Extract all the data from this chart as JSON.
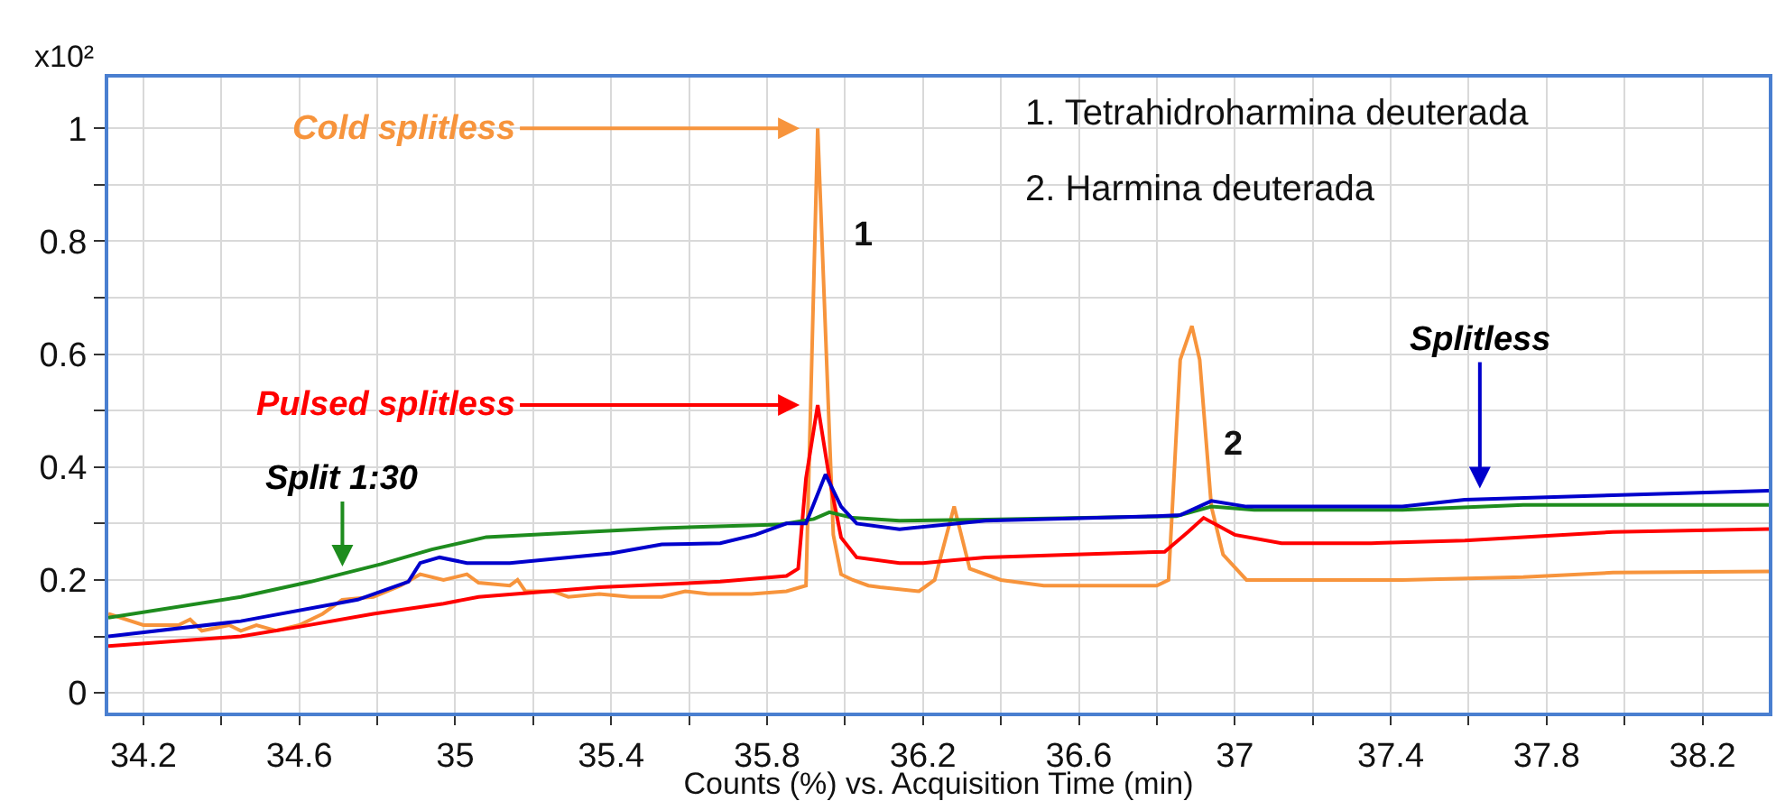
{
  "chart_data": {
    "type": "line",
    "xlabel": "Counts (%) vs. Acquisition Time (min)",
    "ylabel": "x10²",
    "xlim": [
      34.11,
      38.37
    ],
    "ylim": [
      -0.035,
      1.09
    ],
    "xticks": [
      34.2,
      {
        "value": 34.4,
        "label": null
      },
      34.6,
      {
        "value": 34.8,
        "label": null
      },
      35,
      {
        "value": 35.2,
        "label": null
      },
      35.4,
      {
        "value": 35.6,
        "label": null
      },
      35.8,
      {
        "value": 36.0,
        "label": null
      },
      36.2,
      {
        "value": 36.4,
        "label": null
      },
      36.6,
      {
        "value": 36.8,
        "label": null
      },
      37,
      {
        "value": 37.2,
        "label": null
      },
      37.4,
      {
        "value": 37.6,
        "label": null
      },
      37.8,
      {
        "value": 38.0,
        "label": null
      },
      38.2
    ],
    "yticks": [
      0,
      {
        "value": 0.1,
        "label": null
      },
      0.2,
      {
        "value": 0.3,
        "label": null
      },
      0.4,
      {
        "value": 0.5,
        "label": null
      },
      0.6,
      {
        "value": 0.7,
        "label": null
      },
      0.8,
      {
        "value": 0.9,
        "label": null
      },
      1
    ],
    "grid": true,
    "legend": false,
    "marker": "none",
    "line_style": "solid",
    "series": [
      {
        "name": "Cold splitless",
        "color": "#f7943c",
        "x": [
          34.11,
          34.2,
          34.29,
          34.32,
          34.35,
          34.42,
          34.45,
          34.49,
          34.54,
          34.6,
          34.66,
          34.71,
          34.79,
          34.86,
          34.91,
          34.97,
          35.03,
          35.06,
          35.14,
          35.16,
          35.18,
          35.25,
          35.29,
          35.37,
          35.45,
          35.53,
          35.59,
          35.65,
          35.76,
          35.85,
          35.9,
          35.93,
          35.97,
          35.99,
          36.02,
          36.06,
          36.09,
          36.19,
          36.23,
          36.28,
          36.32,
          36.4,
          36.51,
          36.8,
          36.83,
          36.86,
          36.89,
          36.91,
          36.94,
          36.97,
          37.03,
          37.12,
          37.43,
          37.74,
          37.97,
          38.37
        ],
        "values": [
          0.14,
          0.12,
          0.12,
          0.13,
          0.11,
          0.12,
          0.11,
          0.12,
          0.11,
          0.12,
          0.14,
          0.165,
          0.17,
          0.19,
          0.21,
          0.2,
          0.21,
          0.195,
          0.19,
          0.2,
          0.18,
          0.18,
          0.17,
          0.175,
          0.17,
          0.17,
          0.18,
          0.175,
          0.175,
          0.18,
          0.19,
          1.0,
          0.28,
          0.21,
          0.2,
          0.19,
          0.187,
          0.18,
          0.2,
          0.33,
          0.22,
          0.2,
          0.19,
          0.19,
          0.2,
          0.59,
          0.65,
          0.59,
          0.33,
          0.245,
          0.2,
          0.2,
          0.2,
          0.205,
          0.213,
          0.215
        ]
      },
      {
        "name": "Pulsed splitless",
        "color": "#ff0000",
        "x": [
          34.11,
          34.45,
          34.6,
          34.79,
          34.97,
          35.06,
          35.37,
          35.68,
          35.85,
          35.88,
          35.9,
          35.93,
          35.96,
          35.99,
          36.03,
          36.14,
          36.2,
          36.28,
          36.36,
          36.59,
          36.82,
          36.88,
          36.92,
          37.0,
          37.12,
          37.35,
          37.59,
          37.97,
          38.37
        ],
        "values": [
          0.083,
          0.1,
          0.117,
          0.14,
          0.158,
          0.17,
          0.187,
          0.197,
          0.207,
          0.22,
          0.38,
          0.51,
          0.38,
          0.275,
          0.24,
          0.23,
          0.23,
          0.235,
          0.24,
          0.245,
          0.25,
          0.285,
          0.31,
          0.28,
          0.265,
          0.265,
          0.27,
          0.285,
          0.29
        ]
      },
      {
        "name": "Split 1:30",
        "color": "#1e8c1e",
        "x": [
          34.11,
          34.45,
          34.63,
          34.81,
          34.94,
          35.08,
          35.37,
          35.53,
          35.83,
          35.92,
          35.96,
          36.02,
          36.14,
          36.36,
          36.85,
          36.94,
          37.05,
          37.43,
          37.74,
          38.37
        ],
        "values": [
          0.133,
          0.17,
          0.197,
          0.228,
          0.254,
          0.276,
          0.286,
          0.292,
          0.298,
          0.308,
          0.32,
          0.31,
          0.305,
          0.307,
          0.313,
          0.33,
          0.324,
          0.324,
          0.333,
          0.333
        ]
      },
      {
        "name": "Splitless",
        "color": "#0000cc",
        "x": [
          34.11,
          34.45,
          34.75,
          34.88,
          34.91,
          34.96,
          35.03,
          35.14,
          35.4,
          35.53,
          35.68,
          35.77,
          35.85,
          35.9,
          35.95,
          35.99,
          36.03,
          36.14,
          36.36,
          36.8,
          36.86,
          36.94,
          37.03,
          37.43,
          37.59,
          37.97,
          38.37
        ],
        "values": [
          0.1,
          0.127,
          0.165,
          0.197,
          0.23,
          0.24,
          0.23,
          0.23,
          0.247,
          0.263,
          0.265,
          0.28,
          0.3,
          0.3,
          0.387,
          0.33,
          0.3,
          0.29,
          0.305,
          0.313,
          0.315,
          0.34,
          0.33,
          0.33,
          0.342,
          0.35,
          0.358
        ]
      }
    ],
    "annotations": [
      "1",
      "2",
      "1. Tetrahidroharmina deuterada",
      "2. Harmina deuterada"
    ]
  }
}
